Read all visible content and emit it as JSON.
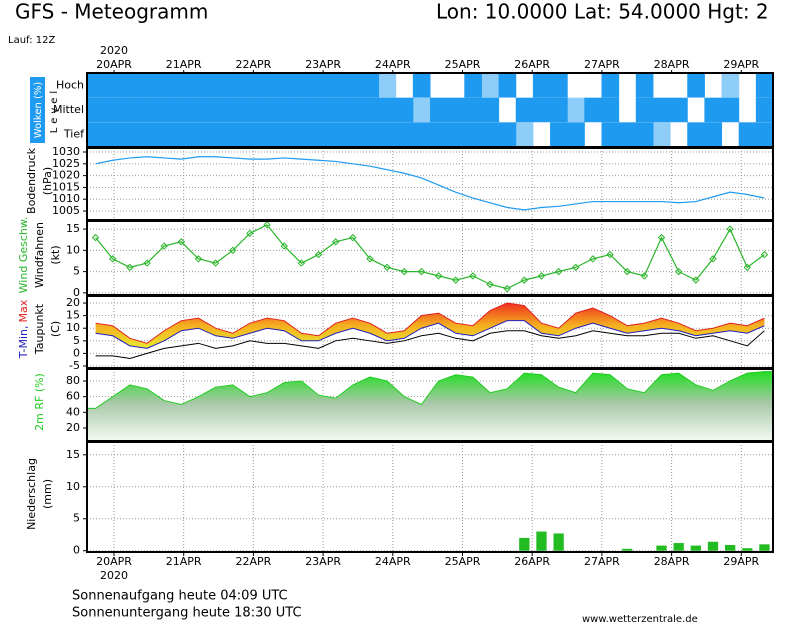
{
  "header": {
    "title": "GFS - Meteogramm",
    "location": "Lon: 10.0000 Lat: 54.0000 Hgt: 2",
    "run": "Lauf: 12Z"
  },
  "x_axis": {
    "year": "2020",
    "labels": [
      "20APR",
      "21APR",
      "22APR",
      "23APR",
      "24APR",
      "25APR",
      "26APR",
      "27APR",
      "28APR",
      "29APR"
    ]
  },
  "chart_data": [
    {
      "type": "heatmap",
      "ylabel": [
        "Wolken (%)",
        "Level"
      ],
      "color": "#1e9bf0",
      "series": [
        {
          "name": "Hoch",
          "values": [
            100,
            100,
            100,
            100,
            100,
            100,
            100,
            100,
            100,
            100,
            100,
            100,
            100,
            100,
            100,
            100,
            100,
            50,
            0,
            100,
            0,
            0,
            100,
            50,
            100,
            0,
            100,
            100,
            0,
            0,
            100,
            0,
            100,
            0,
            0,
            100,
            0,
            50,
            0,
            100
          ]
        },
        {
          "name": "Mittel",
          "values": [
            100,
            100,
            100,
            100,
            100,
            100,
            100,
            100,
            100,
            100,
            100,
            100,
            100,
            100,
            100,
            100,
            100,
            100,
            100,
            50,
            100,
            100,
            100,
            100,
            0,
            100,
            100,
            100,
            50,
            100,
            100,
            0,
            100,
            100,
            100,
            0,
            100,
            100,
            0,
            100
          ]
        },
        {
          "name": "Tief",
          "values": [
            100,
            100,
            100,
            100,
            100,
            100,
            100,
            100,
            100,
            100,
            100,
            100,
            100,
            100,
            100,
            100,
            100,
            100,
            100,
            100,
            100,
            100,
            100,
            100,
            100,
            50,
            0,
            100,
            100,
            0,
            100,
            100,
            100,
            50,
            0,
            100,
            100,
            0,
            100,
            100
          ]
        }
      ]
    },
    {
      "type": "line",
      "ylabel": [
        "Bodendruck",
        "(hPa)"
      ],
      "ylim": [
        1001.2,
        1031.7
      ],
      "yticks": [
        1005,
        1010,
        1015,
        1020,
        1025,
        1030
      ],
      "grid": true,
      "series": [
        {
          "name": null,
          "color": "#1e9bf0",
          "values": [
            1025,
            1026.5,
            1027.5,
            1028,
            1027.5,
            1027,
            1028,
            1028,
            1027.5,
            1027,
            1027,
            1027.5,
            1027,
            1026.5,
            1026,
            1025,
            1024,
            1022.5,
            1021,
            1019,
            1016,
            1013,
            1010.5,
            1008.5,
            1006.5,
            1005.5,
            1006.5,
            1007,
            1008,
            1009,
            1009,
            1009,
            1009,
            1009,
            1008.5,
            1009,
            1011,
            1013,
            1012,
            1010.5
          ]
        }
      ]
    },
    {
      "type": "line",
      "ylabel": [
        "Windfahnen",
        "(kt)"
      ],
      "ylim": [
        -0.5,
        16.9
      ],
      "yticks": [
        0,
        5,
        10,
        15
      ],
      "grid": true,
      "markers": "diamond",
      "series": [
        {
          "name": "Wind Geschw.",
          "color": "#2ab52a",
          "values": [
            13,
            8,
            6,
            7,
            11,
            12,
            8,
            7,
            10,
            14,
            16,
            11,
            7,
            9,
            12,
            13,
            8,
            6,
            5,
            5,
            4,
            3,
            4,
            2,
            1,
            3,
            4,
            5,
            6,
            8,
            9,
            5,
            4,
            13,
            5,
            3,
            8,
            15,
            6,
            9
          ]
        }
      ]
    },
    {
      "type": "band",
      "ylabel": [
        "(C)"
      ],
      "ylim": [
        -5.8,
        22.8
      ],
      "yticks": [
        -5,
        0,
        5,
        10,
        15,
        20
      ],
      "grid": true,
      "series": [
        {
          "name": "T-Min,",
          "color": "#2020c0",
          "values": [
            8,
            7,
            3,
            2,
            5,
            9,
            10,
            7,
            6,
            8,
            10,
            9,
            5,
            5,
            8,
            10,
            8,
            5,
            6,
            10,
            12,
            8,
            7,
            10,
            13,
            13,
            8,
            7,
            10,
            12,
            10,
            8,
            9,
            10,
            9,
            7,
            8,
            9,
            8,
            11
          ]
        },
        {
          "name": "Max",
          "color": "#e02020",
          "values": [
            12,
            11,
            6,
            4,
            9,
            13,
            14,
            10,
            8,
            12,
            14,
            13,
            8,
            7,
            12,
            14,
            12,
            8,
            9,
            15,
            16,
            12,
            11,
            17,
            20,
            19,
            12,
            10,
            16,
            18,
            15,
            11,
            12,
            14,
            12,
            9,
            10,
            12,
            11,
            14
          ]
        },
        {
          "name": "Taupunkt",
          "color": "#000000",
          "values": [
            -1,
            -1,
            -2,
            0,
            2,
            3,
            4,
            2,
            3,
            5,
            4,
            4,
            3,
            2,
            5,
            6,
            5,
            4,
            5,
            7,
            8,
            6,
            5,
            8,
            9,
            9,
            7,
            6,
            7,
            9,
            8,
            7,
            7,
            8,
            8,
            6,
            7,
            5,
            3,
            9
          ]
        }
      ]
    },
    {
      "type": "area",
      "ylim": [
        3.4,
        95.3
      ],
      "yticks": [
        20,
        40,
        60,
        80
      ],
      "grid": true,
      "series": [
        {
          "name": "2m RF (%)",
          "color": "#22cc22",
          "values": [
            45,
            60,
            75,
            70,
            55,
            50,
            60,
            72,
            75,
            60,
            65,
            78,
            80,
            62,
            58,
            75,
            85,
            80,
            60,
            50,
            80,
            88,
            85,
            65,
            70,
            90,
            88,
            72,
            65,
            90,
            88,
            70,
            65,
            88,
            90,
            75,
            68,
            80,
            90,
            92
          ]
        }
      ]
    },
    {
      "type": "bar",
      "ylabel": [
        "Niederschlag",
        "(mm)"
      ],
      "ylim": [
        -0.2,
        17
      ],
      "yticks": [
        0,
        5,
        10,
        15
      ],
      "grid": true,
      "series": [
        {
          "name": null,
          "color": "#22bb22",
          "values": [
            0,
            0,
            0,
            0,
            0,
            0,
            0,
            0,
            0,
            0,
            0,
            0,
            0,
            0,
            0,
            0,
            0,
            0,
            0,
            0,
            0,
            0,
            0,
            0,
            0,
            2,
            3,
            2.7,
            0,
            0,
            0,
            0.3,
            0,
            0.8,
            1.2,
            0.8,
            1.4,
            0.9,
            0.4,
            1
          ]
        }
      ]
    }
  ],
  "footer": {
    "sunrise": "Sonnenaufgang heute 04:09 UTC",
    "sunset": "Sonnenuntergang heute 18:30 UTC",
    "site": "www.wetterzentrale.de"
  }
}
